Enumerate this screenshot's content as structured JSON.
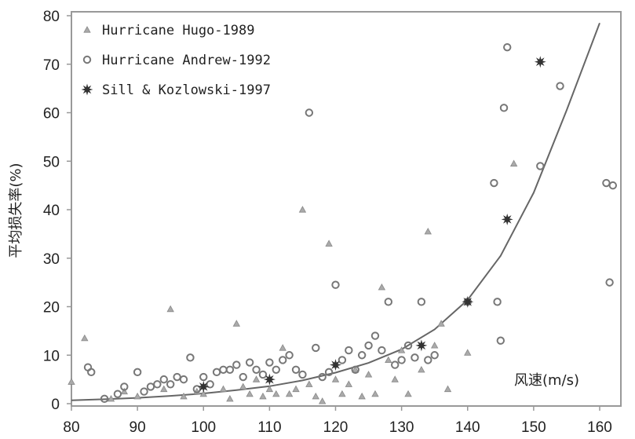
{
  "chart_data": {
    "type": "scatter",
    "title": "",
    "xlabel": "风速(m/s)",
    "ylabel": "平均损失率(%)",
    "xlim": [
      80,
      162
    ],
    "ylim": [
      0,
      80
    ],
    "x_ticks": [
      80,
      90,
      100,
      110,
      120,
      130,
      140,
      150,
      160
    ],
    "y_ticks": [
      0,
      10,
      20,
      30,
      40,
      50,
      60,
      70,
      80
    ],
    "grid": false,
    "legend_position": "top-left",
    "colors": {
      "marker": "#777777",
      "curve": "#666666",
      "axis": "#999999"
    },
    "series": [
      {
        "name": "Hurricane Hugo-1989",
        "marker": "triangle",
        "points": [
          [
            80,
            4.5
          ],
          [
            82,
            13.5
          ],
          [
            86,
            1
          ],
          [
            88,
            2.5
          ],
          [
            90,
            1.5
          ],
          [
            94,
            3
          ],
          [
            95,
            19.5
          ],
          [
            97,
            1.5
          ],
          [
            99,
            2.5
          ],
          [
            100,
            2
          ],
          [
            103,
            3
          ],
          [
            104,
            1
          ],
          [
            105,
            16.5
          ],
          [
            106,
            3.5
          ],
          [
            107,
            2
          ],
          [
            108,
            5
          ],
          [
            109,
            1.5
          ],
          [
            110,
            3
          ],
          [
            111,
            2
          ],
          [
            112,
            11.5
          ],
          [
            113,
            2
          ],
          [
            114,
            3
          ],
          [
            115,
            40
          ],
          [
            116,
            4
          ],
          [
            117,
            1.5
          ],
          [
            118,
            0.5
          ],
          [
            119,
            33
          ],
          [
            120,
            5
          ],
          [
            121,
            2
          ],
          [
            122,
            4
          ],
          [
            123,
            7
          ],
          [
            124,
            1.5
          ],
          [
            125,
            6
          ],
          [
            126,
            2
          ],
          [
            127,
            24
          ],
          [
            128,
            9
          ],
          [
            129,
            5
          ],
          [
            130,
            11
          ],
          [
            131,
            2
          ],
          [
            133,
            7
          ],
          [
            134,
            35.5
          ],
          [
            135,
            12
          ],
          [
            136,
            16.5
          ],
          [
            137,
            3
          ],
          [
            140,
            10.5
          ],
          [
            147,
            49.5
          ]
        ]
      },
      {
        "name": "Hurricane Andrew-1992",
        "marker": "circle",
        "points": [
          [
            82.5,
            7.5
          ],
          [
            83,
            6.5
          ],
          [
            85,
            1
          ],
          [
            87,
            2
          ],
          [
            88,
            3.5
          ],
          [
            90,
            6.5
          ],
          [
            91,
            2.5
          ],
          [
            92,
            3.5
          ],
          [
            93,
            4
          ],
          [
            94,
            5
          ],
          [
            95,
            4
          ],
          [
            96,
            5.5
          ],
          [
            97,
            5
          ],
          [
            98,
            9.5
          ],
          [
            99,
            3
          ],
          [
            100,
            5.5
          ],
          [
            101,
            4
          ],
          [
            102,
            6.5
          ],
          [
            103,
            7
          ],
          [
            104,
            7
          ],
          [
            105,
            8
          ],
          [
            106,
            5.5
          ],
          [
            107,
            8.5
          ],
          [
            108,
            7
          ],
          [
            109,
            6
          ],
          [
            110,
            8.5
          ],
          [
            111,
            7
          ],
          [
            112,
            9
          ],
          [
            113,
            10
          ],
          [
            114,
            7
          ],
          [
            115,
            6
          ],
          [
            116,
            60
          ],
          [
            117,
            11.5
          ],
          [
            118,
            5.5
          ],
          [
            119,
            6.5
          ],
          [
            120,
            24.5
          ],
          [
            121,
            9
          ],
          [
            122,
            11
          ],
          [
            123,
            7
          ],
          [
            124,
            10
          ],
          [
            125,
            12
          ],
          [
            126,
            14
          ],
          [
            127,
            11
          ],
          [
            128,
            21
          ],
          [
            129,
            8
          ],
          [
            130,
            9
          ],
          [
            131,
            12
          ],
          [
            132,
            9.5
          ],
          [
            133,
            21
          ],
          [
            134,
            9
          ],
          [
            135,
            10
          ],
          [
            140,
            21
          ],
          [
            144,
            45.5
          ],
          [
            144.5,
            21
          ],
          [
            145,
            13
          ],
          [
            145.5,
            61
          ],
          [
            146,
            73.5
          ],
          [
            151,
            49
          ],
          [
            154,
            65.5
          ],
          [
            161,
            45.5
          ],
          [
            161.5,
            25
          ],
          [
            162,
            45
          ]
        ]
      },
      {
        "name": "Sill & Kozlowski-1997",
        "marker": "star",
        "points": [
          [
            100,
            3.5
          ],
          [
            110,
            5
          ],
          [
            120,
            8
          ],
          [
            133,
            12
          ],
          [
            140,
            21
          ],
          [
            146,
            38
          ],
          [
            151,
            70.5
          ]
        ]
      }
    ],
    "curve": {
      "name": "",
      "x": [
        80,
        85,
        90,
        95,
        100,
        105,
        110,
        115,
        120,
        125,
        130,
        135,
        140,
        145,
        150,
        155,
        160
      ],
      "y": [
        0.7,
        0.9,
        1.2,
        1.6,
        2.1,
        2.8,
        3.6,
        4.8,
        6.4,
        8.4,
        11.2,
        15.3,
        21.4,
        30.5,
        43.5,
        60.5,
        78.5
      ]
    }
  }
}
